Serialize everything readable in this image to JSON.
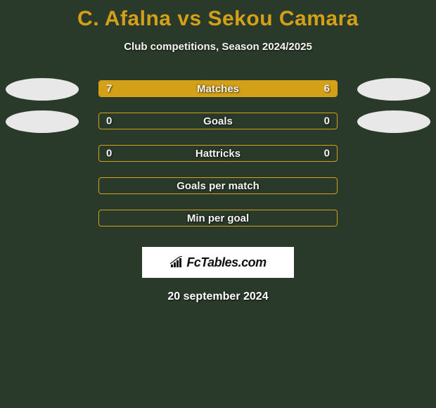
{
  "title": "C. Afalna vs Sekou Camara",
  "subtitle": "Club competitions, Season 2024/2025",
  "date": "20 september 2024",
  "colors": {
    "accent": "#d4a017",
    "background": "#2a3a2a",
    "badge_left": "#e8e8e8",
    "badge_right": "#e8e8e8",
    "text": "#f5f5f5",
    "logo_bg": "#ffffff",
    "logo_text": "#111111"
  },
  "typography": {
    "title_fontsize": 30,
    "subtitle_fontsize": 15,
    "bar_label_fontsize": 15,
    "date_fontsize": 16
  },
  "logo": {
    "text": "FcTables.com"
  },
  "stats": [
    {
      "label": "Matches",
      "left_value": "7",
      "right_value": "6",
      "left_fill_pct": 54,
      "right_fill_pct": 46,
      "show_values": true,
      "show_badges": true
    },
    {
      "label": "Goals",
      "left_value": "0",
      "right_value": "0",
      "left_fill_pct": 0,
      "right_fill_pct": 0,
      "show_values": true,
      "show_badges": true
    },
    {
      "label": "Hattricks",
      "left_value": "0",
      "right_value": "0",
      "left_fill_pct": 0,
      "right_fill_pct": 0,
      "show_values": true,
      "show_badges": false
    },
    {
      "label": "Goals per match",
      "left_value": "",
      "right_value": "",
      "left_fill_pct": 0,
      "right_fill_pct": 0,
      "show_values": false,
      "show_badges": false
    },
    {
      "label": "Min per goal",
      "left_value": "",
      "right_value": "",
      "left_fill_pct": 0,
      "right_fill_pct": 0,
      "show_values": false,
      "show_badges": false
    }
  ]
}
